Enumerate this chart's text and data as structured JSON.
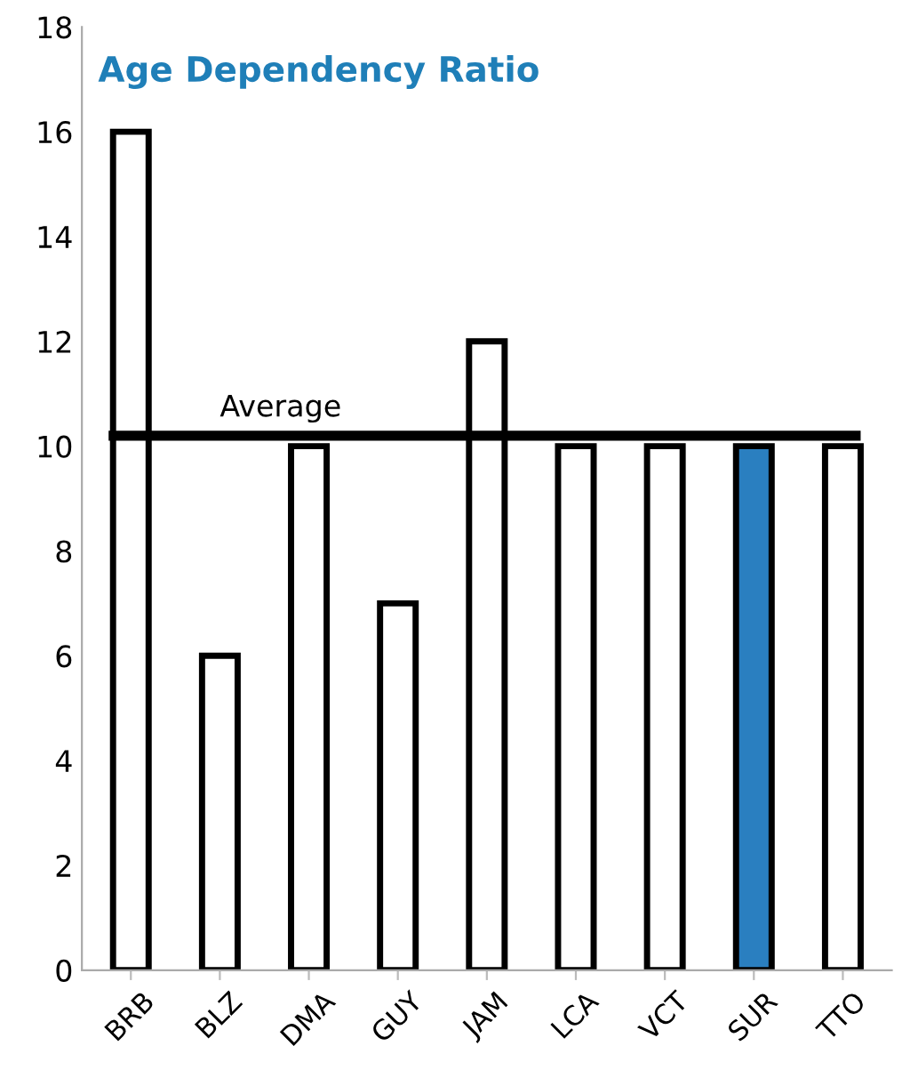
{
  "chart_data": {
    "type": "bar",
    "title": "Age Dependency Ratio",
    "categories": [
      "BRB",
      "BLZ",
      "DMA",
      "GUY",
      "JAM",
      "LCA",
      "VCT",
      "SUR",
      "TTO"
    ],
    "values": [
      16,
      6,
      10,
      7,
      12,
      10,
      10,
      10,
      10
    ],
    "colors": [
      "#ffffff",
      "#ffffff",
      "#ffffff",
      "#ffffff",
      "#ffffff",
      "#ffffff",
      "#ffffff",
      "#2a7fc0",
      "#ffffff"
    ],
    "ylim": [
      0,
      18
    ],
    "yticks": [
      0,
      2,
      4,
      6,
      8,
      10,
      12,
      14,
      16,
      18
    ],
    "grid": false,
    "legend": false,
    "ref_lines": [
      {
        "axis": "y",
        "value": 10.2,
        "label": "Average",
        "color": "#000000"
      }
    ]
  }
}
